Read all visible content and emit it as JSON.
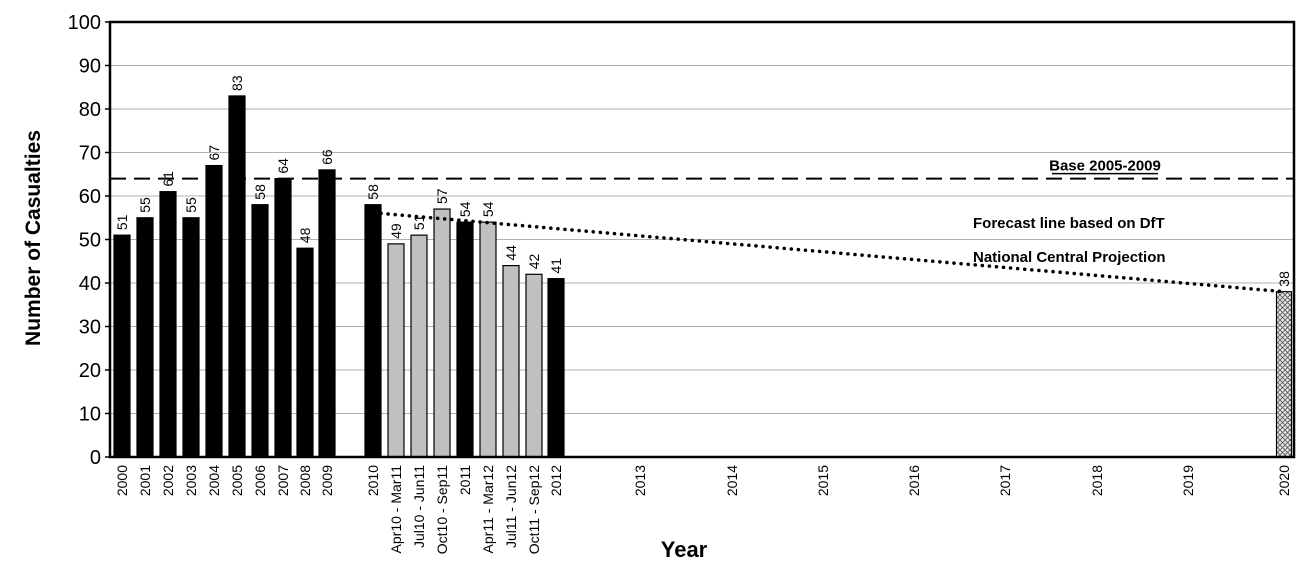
{
  "chart_data": {
    "type": "bar",
    "title": "",
    "xlabel": "Year",
    "ylabel": "Number of Casualties",
    "ylim": [
      0,
      100
    ],
    "yticks": [
      0,
      10,
      20,
      30,
      40,
      50,
      60,
      70,
      80,
      90,
      100
    ],
    "grid": true,
    "categories": [
      "2000",
      "2001",
      "2002",
      "2003",
      "2004",
      "2005",
      "2006",
      "2007",
      "2008",
      "2009",
      "2010",
      "Apr10 - Mar11",
      "Jul10 - Jun11",
      "Oct10 - Sep11",
      "2011",
      "Apr11 - Mar12",
      "Jul11 - Jun12",
      "Oct11 - Sep12",
      "2012",
      "2013",
      "2014",
      "2015",
      "2016",
      "2017",
      "2018",
      "2019",
      "2020"
    ],
    "series": [
      {
        "style": "solid",
        "color": "#000000",
        "values": [
          51,
          55,
          61,
          55,
          67,
          83,
          58,
          64,
          48,
          66,
          58,
          null,
          null,
          null,
          54,
          null,
          null,
          null,
          41,
          null,
          null,
          null,
          null,
          null,
          null,
          null,
          null
        ]
      },
      {
        "style": "rolling",
        "color": "#c0c0c0",
        "values": [
          null,
          null,
          null,
          null,
          null,
          null,
          null,
          null,
          null,
          null,
          null,
          49,
          51,
          57,
          null,
          54,
          44,
          42,
          null,
          null,
          null,
          null,
          null,
          null,
          null,
          null,
          null
        ]
      },
      {
        "style": "target",
        "color": "#d9d9d9",
        "values": [
          null,
          null,
          null,
          null,
          null,
          null,
          null,
          null,
          null,
          null,
          null,
          null,
          null,
          null,
          null,
          null,
          null,
          null,
          null,
          null,
          null,
          null,
          null,
          null,
          null,
          null,
          38
        ]
      }
    ],
    "reference_line": {
      "label": "Base 2005-2009",
      "value": 64,
      "style": "dashed"
    },
    "forecast_line": {
      "label_line1": "Forecast line based on DfT",
      "label_line2": "National Central Projection",
      "from": {
        "category": "2010",
        "value": 56
      },
      "to": {
        "category": "2020",
        "value": 38
      },
      "style": "dotted"
    }
  }
}
